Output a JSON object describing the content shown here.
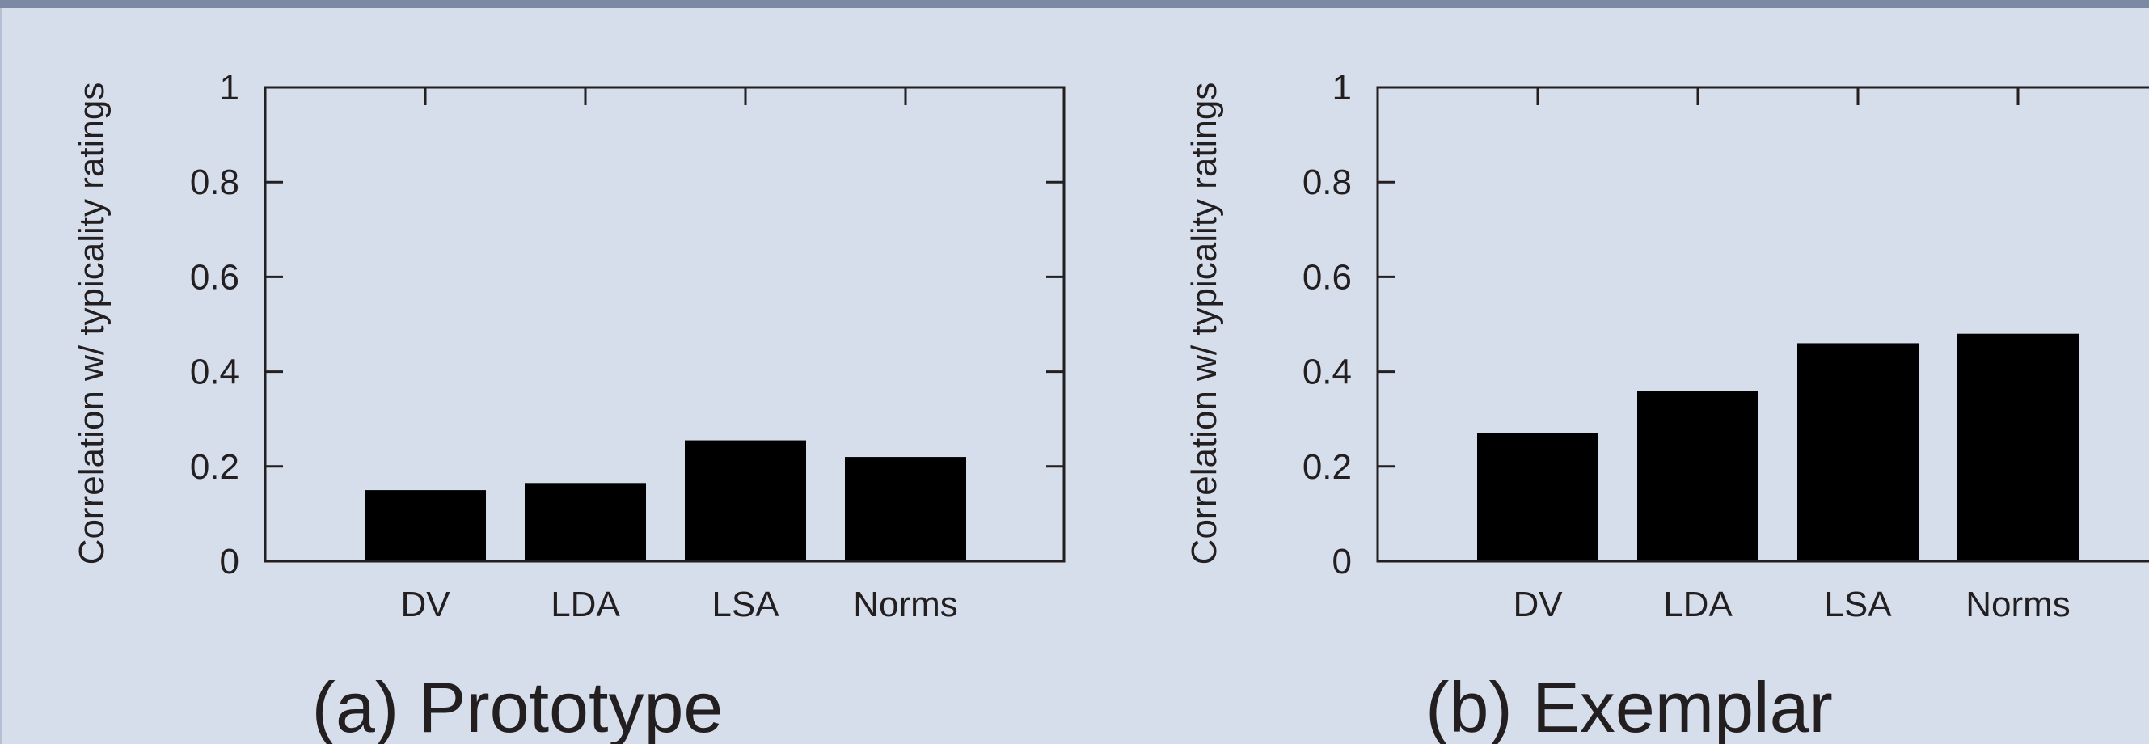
{
  "chart_data": [
    {
      "type": "bar",
      "ylabel": "Correlation w/ typicality ratings",
      "caption": "(a) Prototype",
      "categories": [
        "DV",
        "LDA",
        "LSA",
        "Norms"
      ],
      "values": [
        0.15,
        0.165,
        0.255,
        0.22
      ],
      "ylim": [
        0,
        1
      ],
      "yticks": [
        "0",
        "0.2",
        "0.4",
        "0.6",
        "0.8",
        "1"
      ],
      "grid": false,
      "bar_color": "#000000"
    },
    {
      "type": "bar",
      "ylabel": "Correlation w/ typicality ratings",
      "caption": "(b) Exemplar",
      "categories": [
        "DV",
        "LDA",
        "LSA",
        "Norms"
      ],
      "values": [
        0.27,
        0.36,
        0.46,
        0.48
      ],
      "ylim": [
        0,
        1
      ],
      "yticks": [
        "0",
        "0.2",
        "0.4",
        "0.6",
        "0.8",
        "1"
      ],
      "grid": false,
      "bar_color": "#000000"
    }
  ]
}
